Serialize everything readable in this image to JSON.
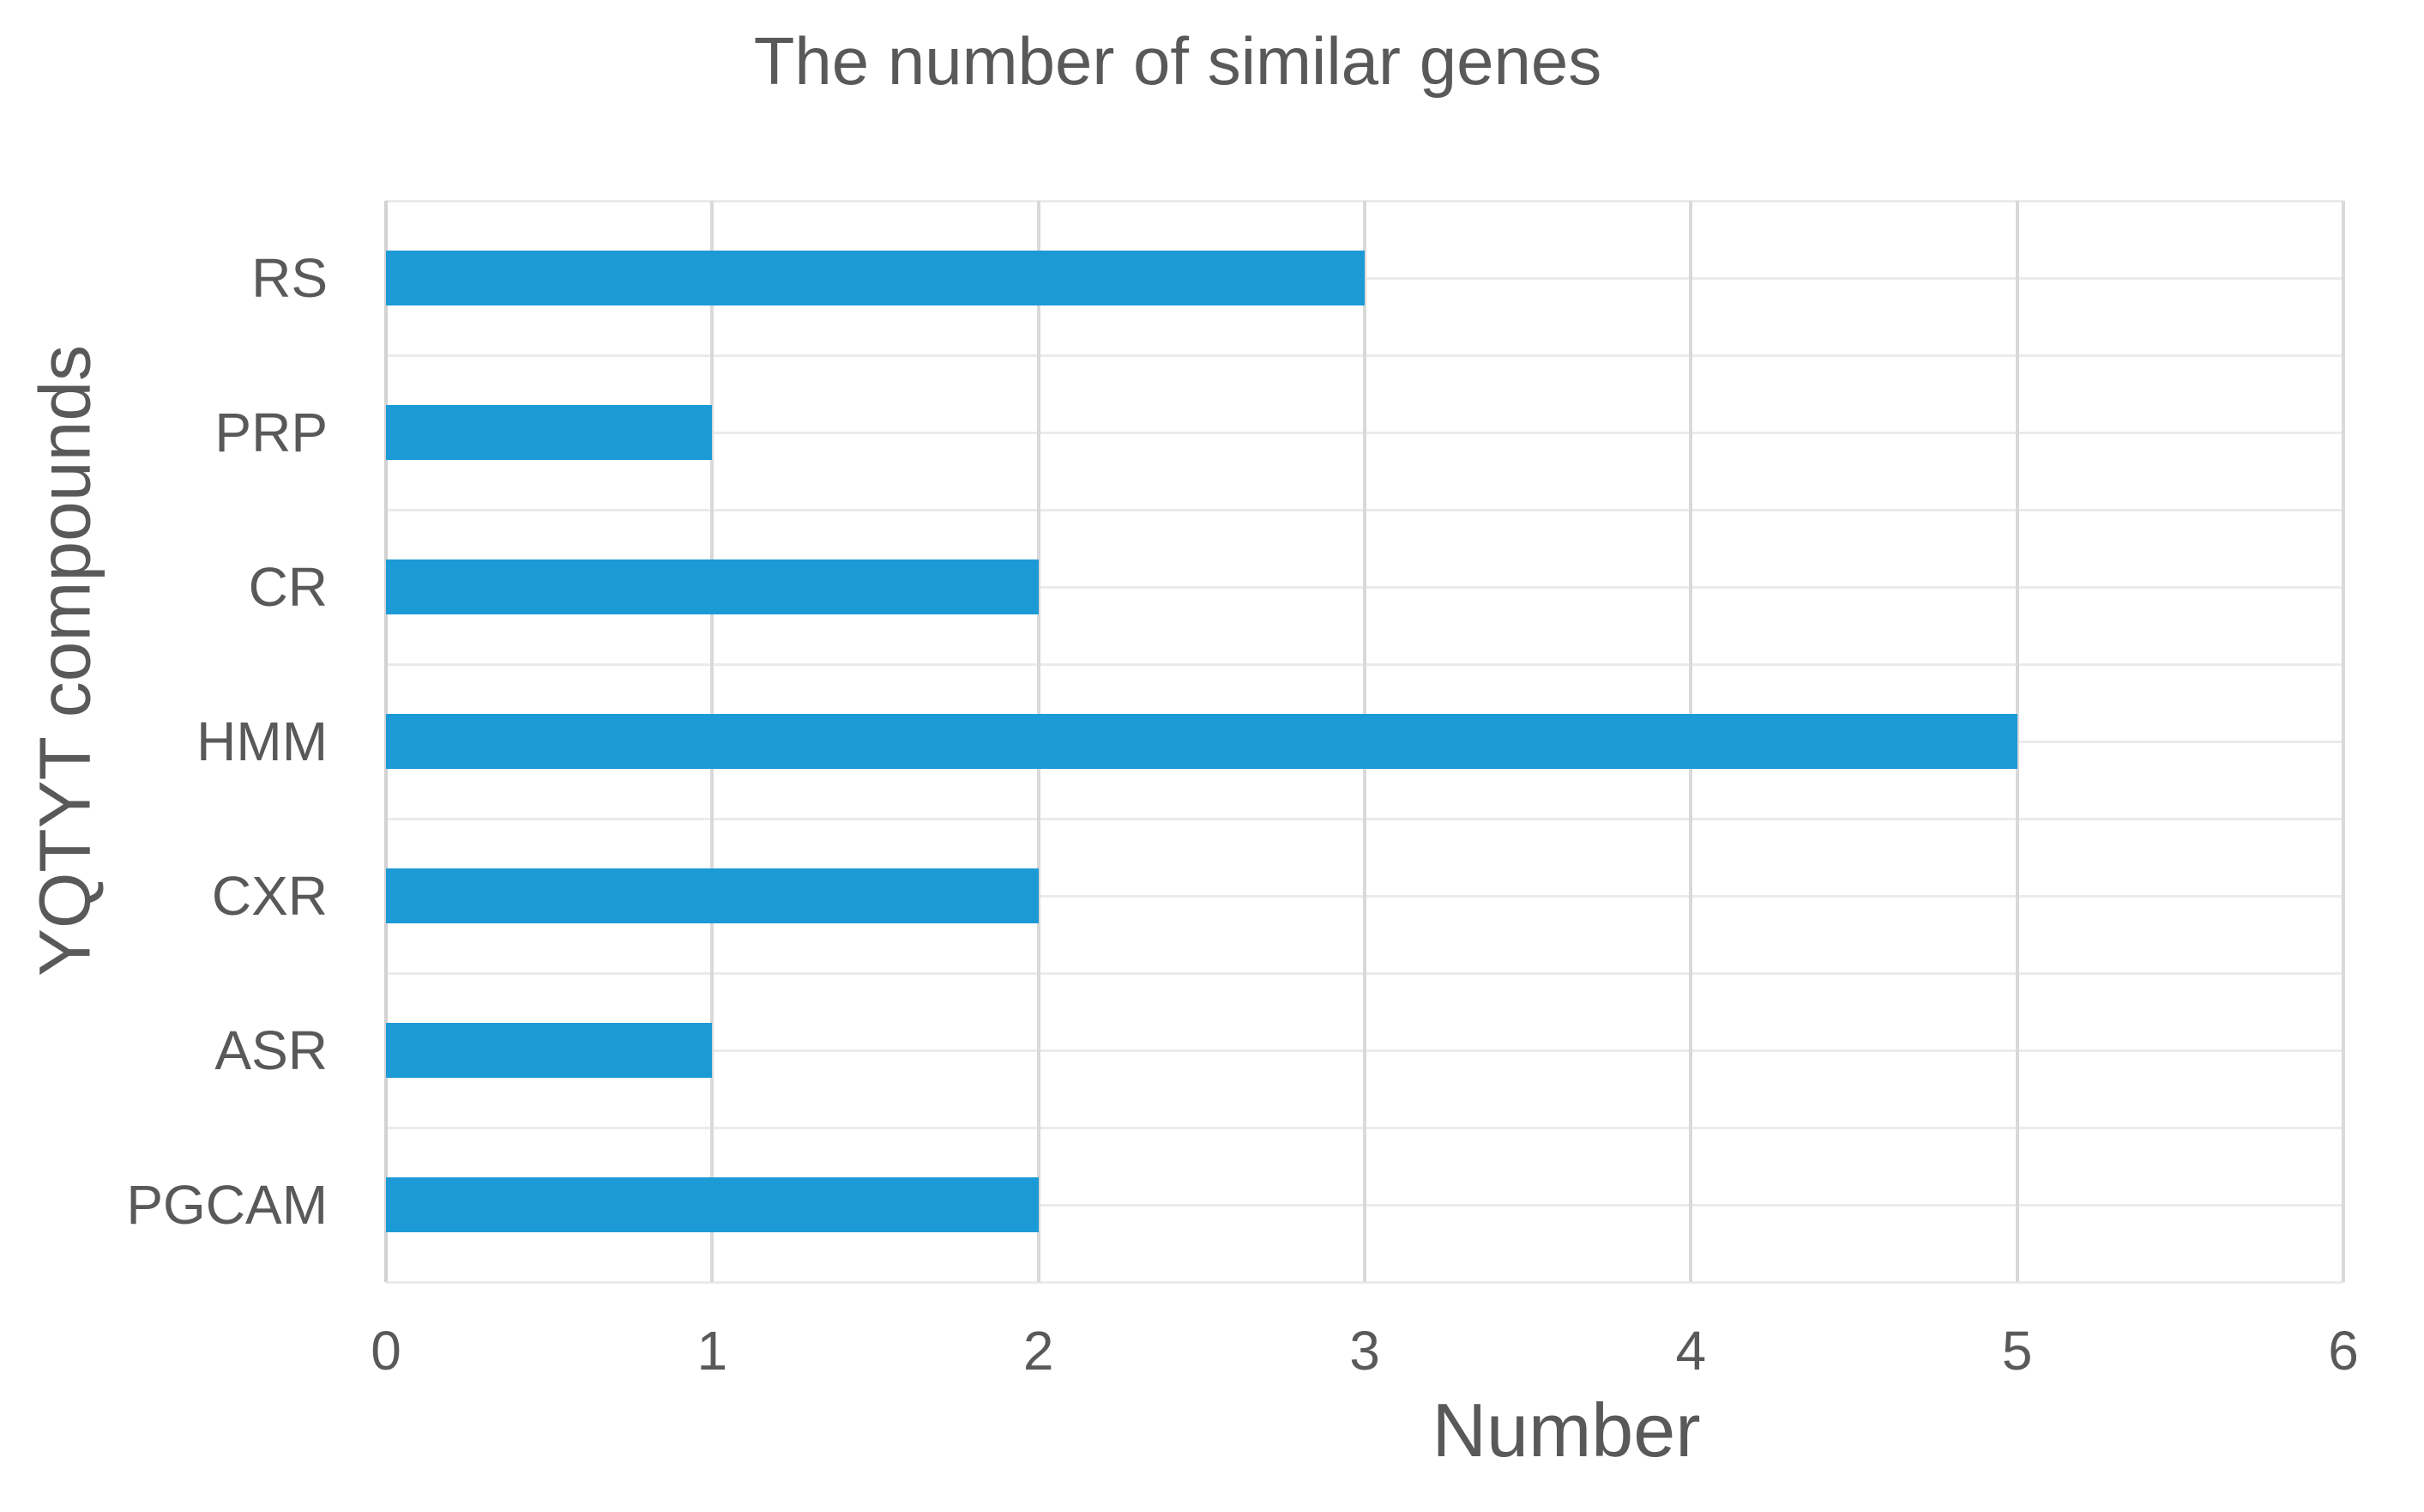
{
  "figure": {
    "title": "The number of similar genes",
    "x_axis_title": "Number",
    "y_axis_title": "YQTYT compounds"
  },
  "colors": {
    "bar": "#1C9AD6",
    "text": "#595959",
    "grid_horizontal": "#EBEBEB",
    "grid_vertical": "#D9D9D9",
    "background": "#FFFFFF"
  },
  "chart_data": {
    "type": "bar",
    "orientation": "horizontal",
    "title": "The number of similar genes",
    "xlabel": "Number",
    "ylabel": "YQTYT compounds",
    "categories": [
      "RS",
      "PRP",
      "CR",
      "HMM",
      "CXR",
      "ASR",
      "PGCAM"
    ],
    "values": [
      3,
      1,
      2,
      5,
      2,
      1,
      2
    ],
    "xlim": [
      0,
      6
    ],
    "x_ticks": [
      0,
      1,
      2,
      3,
      4,
      5,
      6
    ],
    "grid": true,
    "legend": false,
    "bar_color": "#1C9AD6"
  }
}
